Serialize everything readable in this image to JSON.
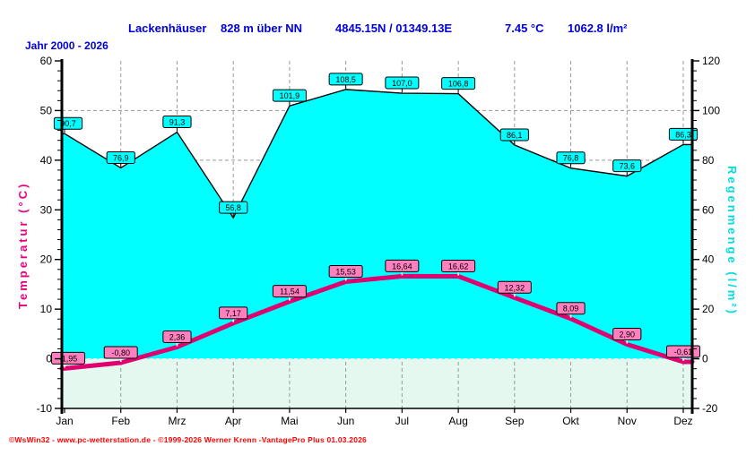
{
  "header": {
    "station": "Lackenhäuser",
    "altitude": "828 m über NN",
    "coordinates": "4845.15N / 01349.13E",
    "mean_temperature": "7.45 °C",
    "annual_rainfall": "1062.8 l/m²",
    "period": "Jahr  2000 - 2026"
  },
  "footer": {
    "credit": "©WsWin32 - www.pc-wetterstation.de - ©1999-2026 Werner Krenn -VantagePro Plus  01.03.2026"
  },
  "chart_data": {
    "type": "area+line",
    "categories": [
      "Jan",
      "Feb",
      "Mrz",
      "Apr",
      "Mai",
      "Jun",
      "Jul",
      "Aug",
      "Sep",
      "Okt",
      "Nov",
      "Dez"
    ],
    "series": [
      {
        "name": "Regenmenge",
        "unit": "l/m²",
        "axis": "right",
        "type": "area",
        "values": [
          90.7,
          76.9,
          91.3,
          56.8,
          101.9,
          108.5,
          107.0,
          106.8,
          86.1,
          76.8,
          73.6,
          86.3
        ],
        "labels": [
          "90,7",
          "76,9",
          "91,3",
          "56,8",
          "101,9",
          "108,5",
          "107,0",
          "106,8",
          "86,1",
          "76,8",
          "73,6",
          "86,3"
        ]
      },
      {
        "name": "Temperatur",
        "unit": "°C",
        "axis": "left",
        "type": "line",
        "values": [
          -1.95,
          -0.8,
          2.36,
          7.17,
          11.54,
          15.53,
          16.64,
          16.62,
          12.32,
          8.09,
          2.9,
          -0.61
        ],
        "labels": [
          "-1,95",
          "-0,80",
          "2,36",
          "7,17",
          "11,54",
          "15,53",
          "16,64",
          "16,62",
          "12,32",
          "8,09",
          "2,90",
          "-0,61"
        ]
      }
    ],
    "left_axis": {
      "title": "Temperatur  (°C)",
      "range": [
        -10,
        60
      ],
      "major_step": 10,
      "minor_step": 2,
      "ticks": [
        "60",
        "50",
        "40",
        "30",
        "20",
        "10",
        "0",
        "-10"
      ]
    },
    "right_axis": {
      "title": "Regenmenge  (l/m²)",
      "range": [
        -20,
        120
      ],
      "major_step": 20,
      "minor_step": 4,
      "ticks": [
        "120",
        "100",
        "80",
        "60",
        "40",
        "20",
        "0",
        "-20"
      ]
    },
    "grid": "dashed",
    "legend_position": "none"
  },
  "colors": {
    "rain_fill": "#00FFFF",
    "rain_outline": "#000000",
    "rain_label_bg": "#00FFFF",
    "temp_line": "#E00070",
    "temp_label_bg": "#FF7FBF",
    "below_zero_bg": "#E5F8F0",
    "plot_bg": "#FFFFFF",
    "grid_line": "#999999",
    "zero_line": "#E8E8E8",
    "axis_line": "#000000",
    "tick_text": "#000000",
    "left_title": "#E80080",
    "right_title": "#00DCDC",
    "header_text": "#0000DD",
    "footer_text": "#FF0000"
  }
}
